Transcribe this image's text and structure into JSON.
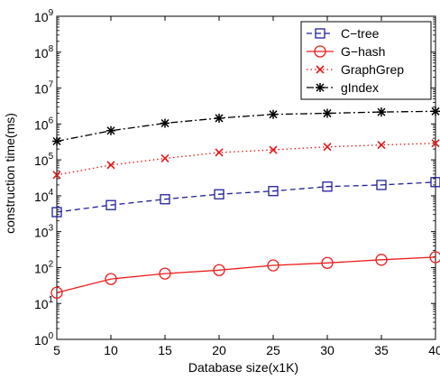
{
  "chart_data": {
    "type": "line",
    "title": "",
    "xlabel": "Database size(x1K)",
    "ylabel": "construction time(ms)",
    "x": [
      5,
      10,
      15,
      20,
      25,
      30,
      35,
      40
    ],
    "xlim": [
      5,
      40
    ],
    "ylim": [
      1,
      1000000000
    ],
    "y_scale": "log",
    "x_ticks": [
      "5",
      "10",
      "15",
      "20",
      "25",
      "30",
      "35",
      "40"
    ],
    "y_ticks": [
      {
        "base": "10",
        "exp": "0"
      },
      {
        "base": "10",
        "exp": "1"
      },
      {
        "base": "10",
        "exp": "2"
      },
      {
        "base": "10",
        "exp": "3"
      },
      {
        "base": "10",
        "exp": "4"
      },
      {
        "base": "10",
        "exp": "5"
      },
      {
        "base": "10",
        "exp": "6"
      },
      {
        "base": "10",
        "exp": "7"
      },
      {
        "base": "10",
        "exp": "8"
      },
      {
        "base": "10",
        "exp": "9"
      }
    ],
    "grid": false,
    "legend_position": "top-right",
    "series": [
      {
        "name": "C−tree",
        "color": "#1f1f9e",
        "line_style": "dashed",
        "marker": "square",
        "values": [
          3500,
          5500,
          8000,
          11000,
          13500,
          18000,
          20000,
          24000
        ]
      },
      {
        "name": "G−hash",
        "color": "#ee1c1c",
        "line_style": "solid",
        "marker": "circle",
        "values": [
          20,
          48,
          68,
          85,
          115,
          135,
          165,
          195
        ]
      },
      {
        "name": "GraphGrep",
        "color": "#e01818",
        "line_style": "dotted",
        "marker": "x",
        "values": [
          38000,
          72000,
          110000,
          160000,
          190000,
          230000,
          260000,
          290000
        ]
      },
      {
        "name": "gIndex",
        "color": "#000000",
        "line_style": "dashdot",
        "marker": "asterisk",
        "values": [
          330000,
          650000,
          1050000,
          1450000,
          1850000,
          1980000,
          2150000,
          2250000
        ]
      }
    ]
  }
}
